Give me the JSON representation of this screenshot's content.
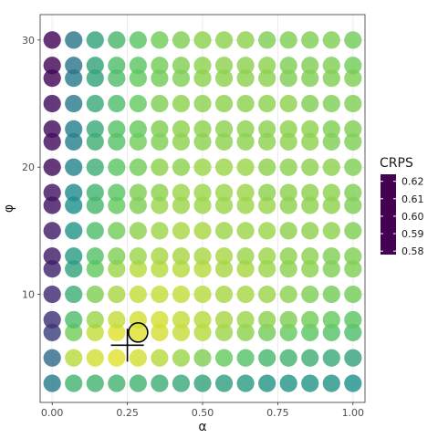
{
  "chart_data": {
    "type": "scatter",
    "title": "",
    "xlabel": "α",
    "ylabel": "φ",
    "xlim": [
      -0.04,
      1.04
    ],
    "ylim": [
      1.5,
      32
    ],
    "x_ticks": [
      0.0,
      0.25,
      0.5,
      0.75,
      1.0
    ],
    "x_tick_labels": [
      "0.00",
      "0.25",
      "0.50",
      "0.75",
      "1.00"
    ],
    "y_ticks": [
      10,
      20,
      30
    ],
    "y_tick_labels": [
      "10",
      "20",
      "30"
    ],
    "grid": true,
    "alpha_values": [
      0.0,
      0.0714,
      0.1429,
      0.2143,
      0.2857,
      0.3571,
      0.4286,
      0.5,
      0.5714,
      0.6429,
      0.7143,
      0.7857,
      0.8571,
      0.9286,
      1.0
    ],
    "phi_values": [
      3,
      5,
      7,
      8,
      10,
      12,
      13,
      15,
      17,
      18,
      20,
      22,
      23,
      25,
      27,
      28,
      30
    ],
    "crps_grid": [
      [
        0.605,
        0.594,
        0.594,
        0.594,
        0.594,
        0.595,
        0.596,
        0.597,
        0.598,
        0.599,
        0.6,
        0.6,
        0.6,
        0.6,
        0.601
      ],
      [
        0.608,
        0.583,
        0.581,
        0.58,
        0.581,
        0.583,
        0.585,
        0.587,
        0.589,
        0.591,
        0.593,
        0.594,
        0.595,
        0.596,
        0.597
      ],
      [
        0.615,
        0.588,
        0.582,
        0.58,
        0.58,
        0.581,
        0.582,
        0.583,
        0.585,
        0.586,
        0.588,
        0.589,
        0.59,
        0.591,
        0.592
      ],
      [
        0.617,
        0.592,
        0.585,
        0.582,
        0.581,
        0.581,
        0.582,
        0.583,
        0.584,
        0.585,
        0.586,
        0.587,
        0.588,
        0.589,
        0.59
      ],
      [
        0.618,
        0.595,
        0.587,
        0.584,
        0.582,
        0.582,
        0.582,
        0.583,
        0.584,
        0.584,
        0.585,
        0.586,
        0.587,
        0.588,
        0.588
      ],
      [
        0.619,
        0.597,
        0.589,
        0.585,
        0.583,
        0.583,
        0.583,
        0.583,
        0.584,
        0.584,
        0.585,
        0.586,
        0.586,
        0.587,
        0.587
      ],
      [
        0.62,
        0.599,
        0.591,
        0.587,
        0.585,
        0.584,
        0.584,
        0.584,
        0.584,
        0.585,
        0.585,
        0.586,
        0.586,
        0.587,
        0.587
      ],
      [
        0.62,
        0.6,
        0.592,
        0.588,
        0.586,
        0.585,
        0.584,
        0.584,
        0.585,
        0.585,
        0.585,
        0.586,
        0.586,
        0.586,
        0.587
      ],
      [
        0.621,
        0.601,
        0.593,
        0.589,
        0.587,
        0.585,
        0.585,
        0.585,
        0.585,
        0.585,
        0.585,
        0.586,
        0.586,
        0.586,
        0.587
      ],
      [
        0.621,
        0.602,
        0.594,
        0.59,
        0.587,
        0.586,
        0.585,
        0.585,
        0.585,
        0.585,
        0.586,
        0.586,
        0.586,
        0.586,
        0.587
      ],
      [
        0.622,
        0.603,
        0.595,
        0.59,
        0.588,
        0.586,
        0.586,
        0.585,
        0.585,
        0.585,
        0.586,
        0.586,
        0.586,
        0.586,
        0.587
      ],
      [
        0.622,
        0.604,
        0.595,
        0.591,
        0.588,
        0.587,
        0.586,
        0.586,
        0.586,
        0.586,
        0.586,
        0.586,
        0.586,
        0.587,
        0.587
      ],
      [
        0.622,
        0.604,
        0.596,
        0.591,
        0.589,
        0.587,
        0.586,
        0.586,
        0.586,
        0.586,
        0.586,
        0.586,
        0.586,
        0.587,
        0.587
      ],
      [
        0.622,
        0.605,
        0.596,
        0.592,
        0.589,
        0.587,
        0.586,
        0.586,
        0.586,
        0.586,
        0.586,
        0.586,
        0.587,
        0.587,
        0.587
      ],
      [
        0.623,
        0.605,
        0.597,
        0.592,
        0.589,
        0.588,
        0.587,
        0.586,
        0.586,
        0.586,
        0.586,
        0.587,
        0.587,
        0.587,
        0.587
      ],
      [
        0.623,
        0.606,
        0.597,
        0.592,
        0.59,
        0.588,
        0.587,
        0.586,
        0.586,
        0.586,
        0.586,
        0.587,
        0.587,
        0.587,
        0.588
      ],
      [
        0.623,
        0.606,
        0.597,
        0.593,
        0.59,
        0.588,
        0.587,
        0.586,
        0.586,
        0.586,
        0.587,
        0.587,
        0.587,
        0.587,
        0.588
      ]
    ],
    "highlight_circle": {
      "alpha": 0.2857,
      "phi": 7
    },
    "highlight_cross": {
      "alpha": 0.25,
      "phi": 6
    },
    "legend": {
      "title": "CRPS",
      "position": "right",
      "ticks": [
        0.62,
        0.61,
        0.6,
        0.59,
        0.58
      ],
      "tick_labels": [
        "0.62",
        "0.61",
        "0.60",
        "0.59",
        "0.58"
      ],
      "range": [
        0.578,
        0.624
      ]
    },
    "colormap": [
      "#440154",
      "#3b528b",
      "#21918c",
      "#5ec962",
      "#fde725"
    ]
  }
}
